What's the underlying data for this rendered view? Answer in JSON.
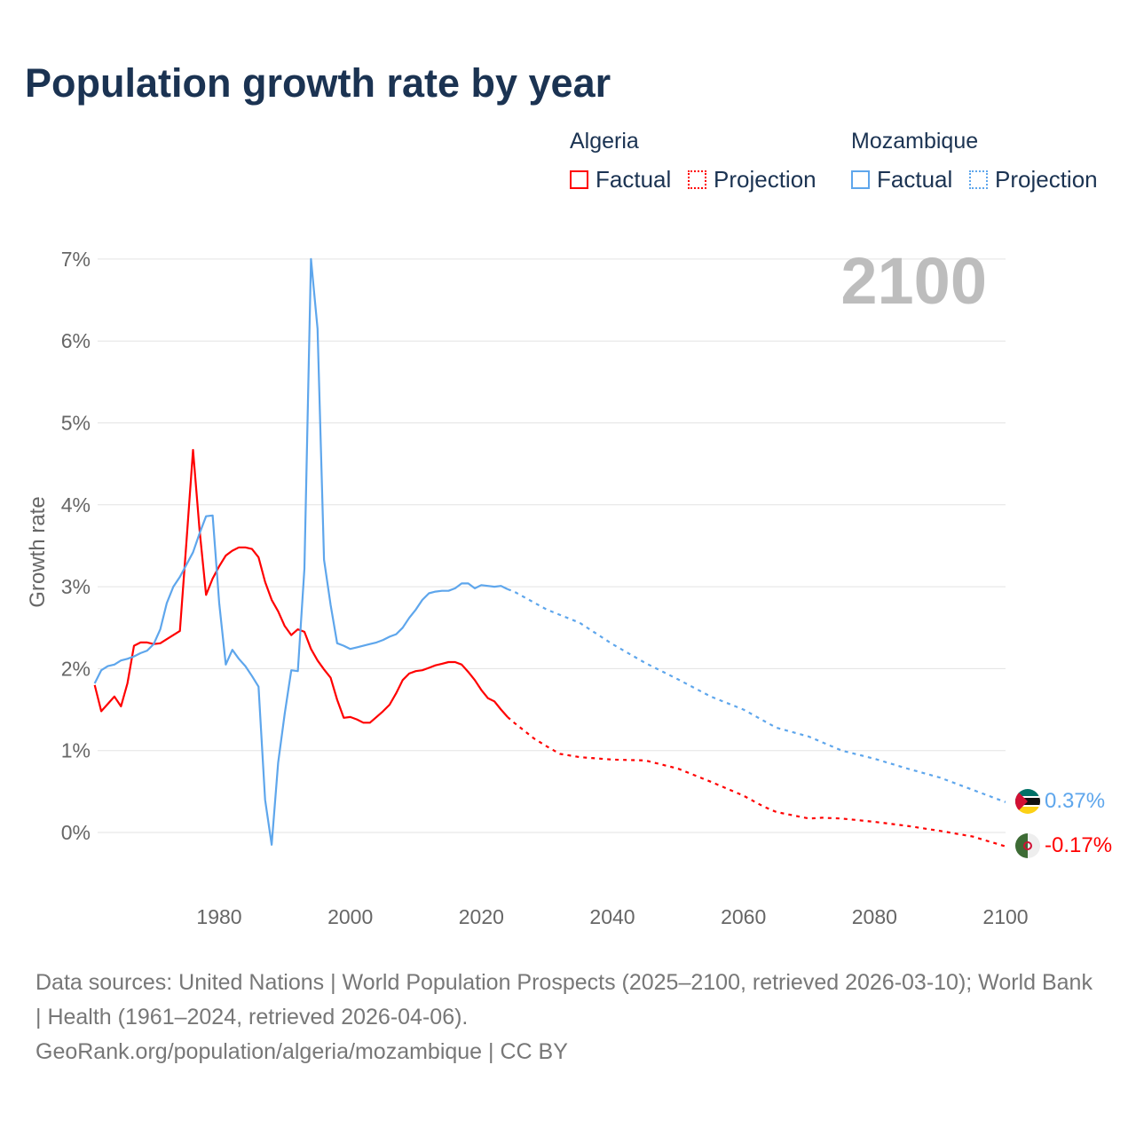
{
  "title": "Population growth rate by year",
  "legend": {
    "groups": [
      {
        "name": "Algeria",
        "factual": "Factual",
        "projection": "Projection",
        "color": "#ff0000"
      },
      {
        "name": "Mozambique",
        "factual": "Factual",
        "projection": "Projection",
        "color": "#5ea6ec"
      }
    ]
  },
  "year_watermark": "2100",
  "end_labels": {
    "mozambique": "0.37%",
    "algeria": "-0.17%"
  },
  "footer": {
    "line1": "Data sources: United Nations | World Population Prospects (2025–2100, retrieved 2026-03-10); World Bank | Health (1961–2024, retrieved 2026-04-06).",
    "line2": "GeoRank.org/population/algeria/mozambique | CC BY"
  },
  "chart_data": {
    "type": "line",
    "title": "Population growth rate by year",
    "xlabel": "",
    "ylabel": "Growth rate",
    "xlim": [
      1961,
      2100
    ],
    "ylim": [
      -0.5,
      7
    ],
    "x_ticks": [
      "1980",
      "2000",
      "2020",
      "2040",
      "2060",
      "2080",
      "2100"
    ],
    "x_tick_values": [
      1980,
      2000,
      2020,
      2040,
      2060,
      2080,
      2100
    ],
    "y_ticks": [
      "0%",
      "1%",
      "2%",
      "3%",
      "4%",
      "5%",
      "6%",
      "7%"
    ],
    "y_tick_values": [
      0,
      1,
      2,
      3,
      4,
      5,
      6,
      7
    ],
    "grid": true,
    "legend_position": "top-right",
    "series": [
      {
        "name": "Algeria Factual",
        "color": "#ff0000",
        "style": "solid",
        "x": [
          1961,
          1962,
          1963,
          1964,
          1965,
          1966,
          1967,
          1968,
          1969,
          1970,
          1971,
          1972,
          1973,
          1974,
          1975,
          1976,
          1977,
          1978,
          1979,
          1980,
          1981,
          1982,
          1983,
          1984,
          1985,
          1986,
          1987,
          1988,
          1989,
          1990,
          1991,
          1992,
          1993,
          1994,
          1995,
          1996,
          1997,
          1998,
          1999,
          2000,
          2001,
          2002,
          2003,
          2004,
          2005,
          2006,
          2007,
          2008,
          2009,
          2010,
          2011,
          2012,
          2013,
          2014,
          2015,
          2016,
          2017,
          2018,
          2019,
          2020,
          2021,
          2022,
          2023,
          2024
        ],
        "y": [
          1.8,
          1.48,
          1.57,
          1.66,
          1.54,
          1.82,
          2.28,
          2.32,
          2.32,
          2.3,
          2.31,
          2.36,
          2.41,
          2.46,
          3.55,
          4.67,
          3.7,
          2.9,
          3.1,
          3.25,
          3.38,
          3.44,
          3.48,
          3.48,
          3.46,
          3.36,
          3.06,
          2.84,
          2.7,
          2.52,
          2.41,
          2.48,
          2.45,
          2.24,
          2.1,
          1.99,
          1.89,
          1.62,
          1.4,
          1.41,
          1.38,
          1.34,
          1.34,
          1.41,
          1.48,
          1.56,
          1.7,
          1.86,
          1.94,
          1.97,
          1.98,
          2.01,
          2.04,
          2.06,
          2.08,
          2.08,
          2.05,
          1.96,
          1.86,
          1.74,
          1.64,
          1.6,
          1.5,
          1.41
        ]
      },
      {
        "name": "Algeria Projection",
        "color": "#ff0000",
        "style": "dotted",
        "x": [
          2024,
          2025,
          2028,
          2030,
          2032,
          2035,
          2040,
          2045,
          2050,
          2055,
          2060,
          2063,
          2065,
          2070,
          2072,
          2075,
          2080,
          2085,
          2090,
          2095,
          2100
        ],
        "y": [
          1.41,
          1.34,
          1.15,
          1.05,
          0.96,
          0.92,
          0.89,
          0.88,
          0.78,
          0.62,
          0.45,
          0.32,
          0.25,
          0.17,
          0.18,
          0.17,
          0.13,
          0.08,
          0.02,
          -0.05,
          -0.17
        ]
      },
      {
        "name": "Mozambique Factual",
        "color": "#5ea6ec",
        "style": "solid",
        "x": [
          1961,
          1962,
          1963,
          1964,
          1965,
          1966,
          1967,
          1968,
          1969,
          1970,
          1971,
          1972,
          1973,
          1974,
          1975,
          1976,
          1977,
          1978,
          1979,
          1980,
          1981,
          1982,
          1983,
          1984,
          1985,
          1986,
          1987,
          1988,
          1989,
          1990,
          1991,
          1992,
          1993,
          1994,
          1995,
          1996,
          1997,
          1998,
          1999,
          2000,
          2001,
          2002,
          2003,
          2004,
          2005,
          2006,
          2007,
          2008,
          2009,
          2010,
          2011,
          2012,
          2013,
          2014,
          2015,
          2016,
          2017,
          2018,
          2019,
          2020,
          2021,
          2022,
          2023,
          2024
        ],
        "y": [
          1.82,
          1.98,
          2.03,
          2.05,
          2.1,
          2.12,
          2.15,
          2.19,
          2.22,
          2.3,
          2.48,
          2.8,
          3.0,
          3.12,
          3.27,
          3.42,
          3.65,
          3.86,
          3.87,
          2.8,
          2.05,
          2.23,
          2.12,
          2.03,
          1.91,
          1.78,
          0.4,
          -0.15,
          0.85,
          1.45,
          1.98,
          1.97,
          3.22,
          7.0,
          6.15,
          3.33,
          2.78,
          2.31,
          2.28,
          2.24,
          2.26,
          2.28,
          2.3,
          2.32,
          2.35,
          2.39,
          2.42,
          2.5,
          2.62,
          2.72,
          2.84,
          2.92,
          2.94,
          2.95,
          2.95,
          2.98,
          3.04,
          3.04,
          2.98,
          3.02,
          3.01,
          3.0,
          3.01,
          2.97
        ]
      },
      {
        "name": "Mozambique Projection",
        "color": "#5ea6ec",
        "style": "dotted",
        "x": [
          2024,
          2025,
          2030,
          2035,
          2040,
          2045,
          2050,
          2055,
          2060,
          2065,
          2070,
          2075,
          2080,
          2085,
          2090,
          2095,
          2100
        ],
        "y": [
          2.97,
          2.94,
          2.72,
          2.56,
          2.3,
          2.07,
          1.87,
          1.66,
          1.5,
          1.28,
          1.17,
          1.0,
          0.9,
          0.78,
          0.67,
          0.52,
          0.37
        ]
      }
    ]
  }
}
